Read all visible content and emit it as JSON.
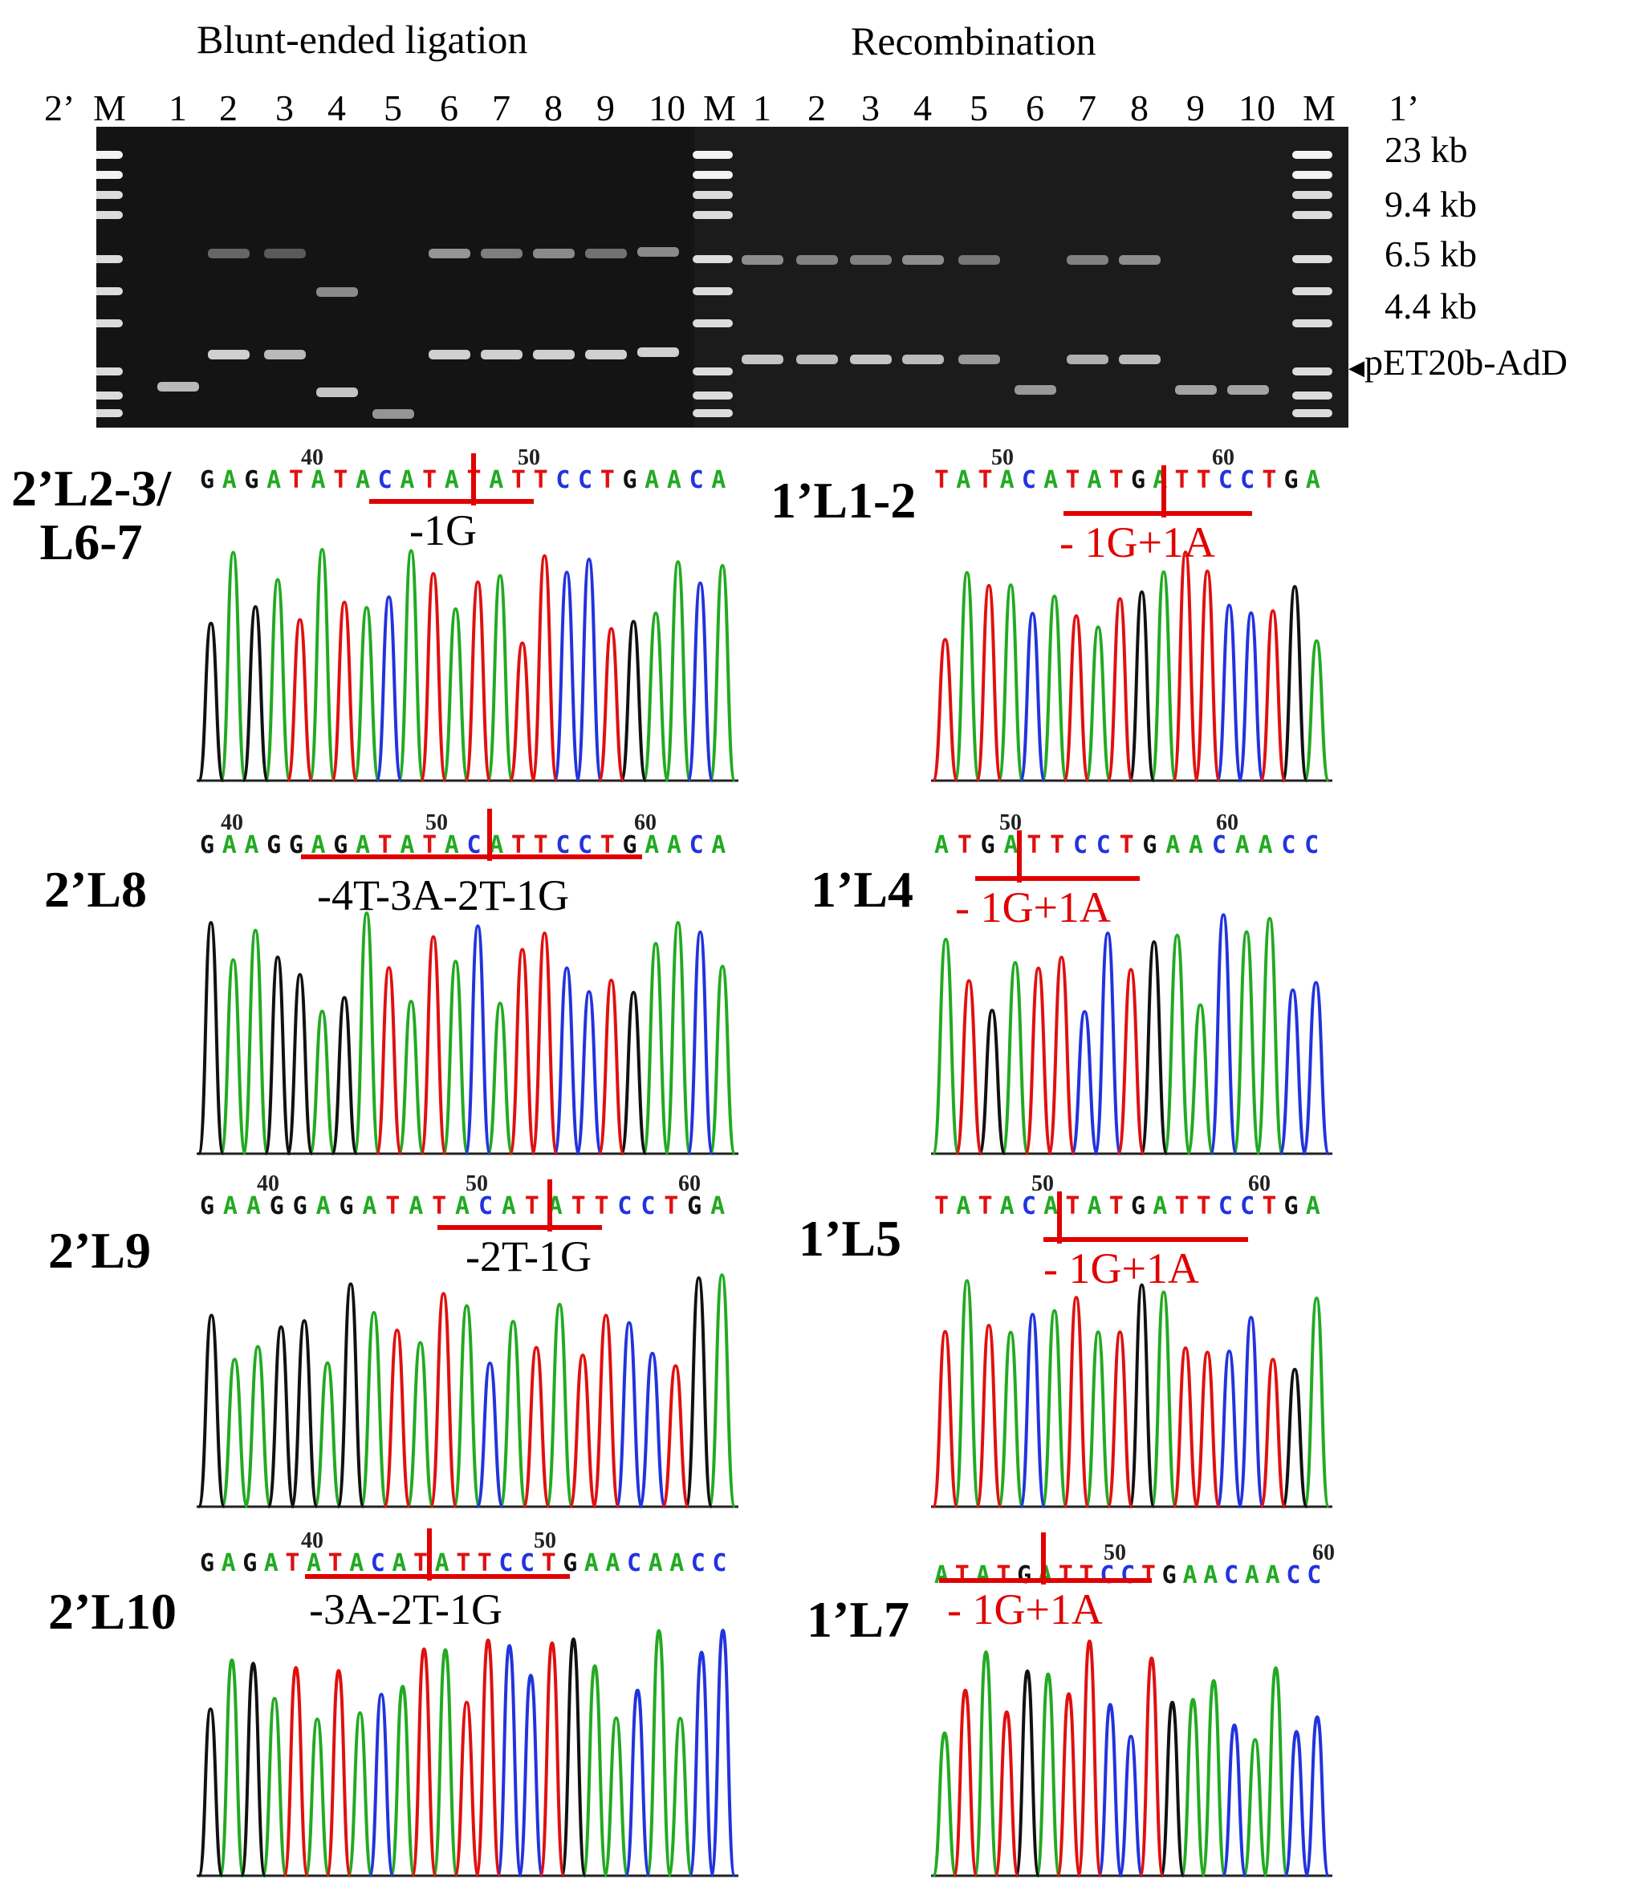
{
  "gel": {
    "title_left": "Blunt-ended ligation",
    "title_right": "Recombination",
    "left_group": "2’",
    "right_group": "1’",
    "lanes_left": [
      "M",
      "1",
      "2",
      "3",
      "4",
      "5",
      "6",
      "7",
      "8",
      "9",
      "10"
    ],
    "lanes_right": [
      "M",
      "1",
      "2",
      "3",
      "4",
      "5",
      "6",
      "7",
      "8",
      "9",
      "10",
      "M"
    ],
    "size_markers": [
      "23 kb",
      "9.4 kb",
      "6.5 kb",
      "4.4 kb"
    ],
    "arrow_label": "pET20b-AdD"
  },
  "panels": [
    {
      "label": "2’L2-3/\nL6-7",
      "ticks": [
        "40",
        "50"
      ],
      "seq": [
        [
          "G",
          "A",
          "G",
          "A",
          "T",
          "A",
          "T",
          "A",
          "C",
          "A",
          "T",
          "A",
          "T",
          "A",
          "T",
          "T",
          "C",
          "C",
          "T",
          "G",
          "A",
          "A",
          "C",
          "A"
        ]
      ],
      "annotation": "-1G",
      "ann_color": "#000000"
    },
    {
      "label": "1’L1-2",
      "ticks": [
        "50",
        "60"
      ],
      "seq": [
        [
          "T",
          "A",
          "T",
          "A",
          "C",
          "A",
          "T",
          "A",
          "T",
          "G",
          "A",
          "T",
          "T",
          "C",
          "C",
          "T",
          "G",
          "A"
        ]
      ],
      "annotation": "- 1G+1A",
      "ann_color": "#e00000"
    },
    {
      "label": "2’L8",
      "ticks": [
        "40",
        "50",
        "60"
      ],
      "seq": [
        [
          "G",
          "A",
          "A",
          "G",
          "G",
          "A",
          "G",
          "A",
          "T",
          "A",
          "T",
          "A",
          "C",
          "A",
          "T",
          "T",
          "C",
          "C",
          "T",
          "G",
          "A",
          "A",
          "C",
          "A"
        ]
      ],
      "annotation": "-4T-3A-2T-1G",
      "ann_color": "#000000"
    },
    {
      "label": "1’L4",
      "ticks": [
        "50",
        "60"
      ],
      "seq": [
        [
          "A",
          "T",
          "G",
          "A",
          "T",
          "T",
          "C",
          "C",
          "T",
          "G",
          "A",
          "A",
          "C",
          "A",
          "A",
          "C",
          "C"
        ]
      ],
      "annotation": "- 1G+1A",
      "ann_color": "#e00000"
    },
    {
      "label": "2’L9",
      "ticks": [
        "40",
        "50",
        "60"
      ],
      "seq": [
        [
          "G",
          "A",
          "A",
          "G",
          "G",
          "A",
          "G",
          "A",
          "T",
          "A",
          "T",
          "A",
          "C",
          "A",
          "T",
          "A",
          "T",
          "T",
          "C",
          "C",
          "T",
          "G",
          "A"
        ]
      ],
      "annotation": "-2T-1G",
      "ann_color": "#000000"
    },
    {
      "label": "1’L5",
      "ticks": [
        "50",
        "60"
      ],
      "seq": [
        [
          "T",
          "A",
          "T",
          "A",
          "C",
          "A",
          "T",
          "A",
          "T",
          "G",
          "A",
          "T",
          "T",
          "C",
          "C",
          "T",
          "G",
          "A"
        ]
      ],
      "annotation": "- 1G+1A",
      "ann_color": "#e00000"
    },
    {
      "label": "2’L10",
      "ticks": [
        "40",
        "50"
      ],
      "seq": [
        [
          "G",
          "A",
          "G",
          "A",
          "T",
          "A",
          "T",
          "A",
          "C",
          "A",
          "T",
          "A",
          "T",
          "T",
          "C",
          "C",
          "T",
          "G",
          "A",
          "A",
          "C",
          "A",
          "A",
          "C",
          "C"
        ]
      ],
      "annotation": "-3A-2T-1G",
      "ann_color": "#000000"
    },
    {
      "label": "1’L7",
      "ticks": [
        "50",
        "60"
      ],
      "seq": [
        [
          "A",
          "T",
          "A",
          "T",
          "G",
          "A",
          "T",
          "T",
          "C",
          "C",
          "T",
          "G",
          "A",
          "A",
          "C",
          "A",
          "A",
          "C",
          "C"
        ]
      ],
      "annotation": "- 1G+1A",
      "ann_color": "#e00000"
    }
  ],
  "colors": {
    "A": "#22aa22",
    "C": "#2233dd",
    "G": "#111111",
    "T": "#e01010",
    "mark": "#e00000",
    "gel_bg": "#141414"
  }
}
